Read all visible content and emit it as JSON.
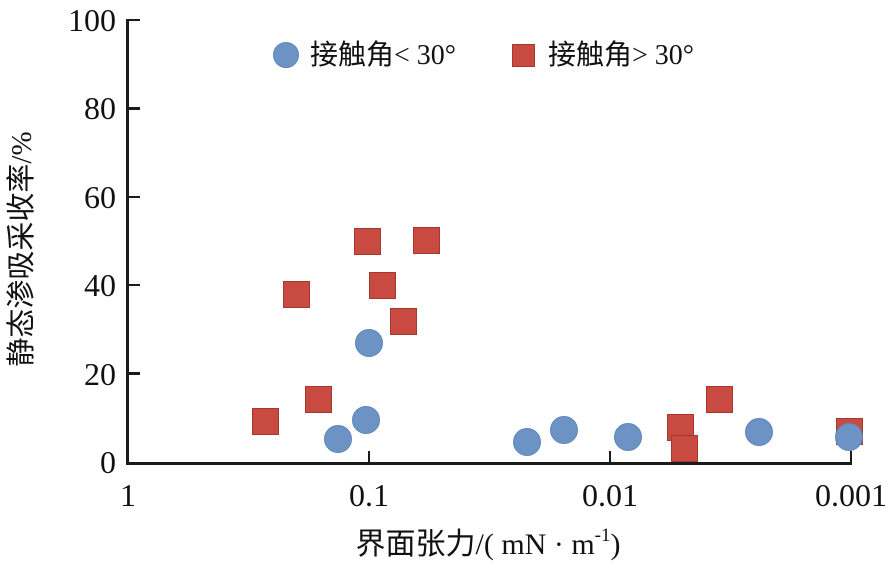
{
  "figure_title": "",
  "chart_data": {
    "type": "scatter",
    "title": "",
    "xlabel": "界面张力/(mN·m⁻¹)",
    "xlabel_parts": {
      "main": "界面张力/( mN · m",
      "sup": "-1",
      "close": ")"
    },
    "ylabel": "静态渗吸采收率/%",
    "x_axis": {
      "scale": "log",
      "reversed": true,
      "range": [
        1,
        0.001
      ],
      "ticks": [
        1,
        0.1,
        0.01,
        0.001
      ],
      "tick_labels": [
        "1",
        "0.1",
        "0.01",
        "0.001"
      ],
      "unit": "mN·m⁻¹"
    },
    "y_axis": {
      "scale": "linear",
      "range": [
        0,
        100
      ],
      "ticks": [
        0,
        20,
        40,
        60,
        80,
        100
      ],
      "tick_labels": [
        "0",
        "20",
        "40",
        "60",
        "80",
        "100"
      ],
      "unit": "%"
    },
    "grid": false,
    "legend_position": "top-inside",
    "series": [
      {
        "name": "接触角< 30°",
        "marker": "circle",
        "color": "#6C93C4",
        "border_color": "#5E86B8",
        "points": [
          [
            0.1,
            27.0
          ],
          [
            0.103,
            9.4
          ],
          [
            0.134,
            5.1
          ],
          [
            0.022,
            4.6
          ],
          [
            0.0155,
            7.2
          ],
          [
            0.0084,
            5.7
          ],
          [
            0.0024,
            6.8
          ],
          [
            0.00102,
            5.7
          ]
        ]
      },
      {
        "name": "接触角> 30°",
        "marker": "square",
        "color": "#C84A40",
        "border_color": "#A73830",
        "points": [
          [
            0.27,
            9.2
          ],
          [
            0.2,
            37.8
          ],
          [
            0.162,
            14.2
          ],
          [
            0.101,
            50.0
          ],
          [
            0.088,
            39.9
          ],
          [
            0.072,
            31.9
          ],
          [
            0.058,
            50.2
          ],
          [
            0.0051,
            7.9
          ],
          [
            0.0049,
            3.0
          ],
          [
            0.0035,
            14.2
          ],
          [
            0.00101,
            7.0
          ]
        ]
      }
    ],
    "axis_color": "#1a1a1a"
  }
}
